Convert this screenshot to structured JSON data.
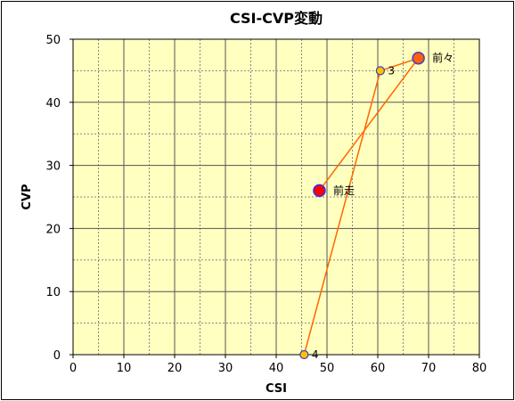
{
  "chart_data": {
    "type": "scatter",
    "title": "CSI-CVP変動",
    "xlabel": "CSI",
    "ylabel": "CVP",
    "xlim": [
      0,
      80
    ],
    "ylim": [
      0,
      50
    ],
    "x_ticks": [
      "0",
      "10",
      "20",
      "30",
      "40",
      "50",
      "60",
      "70",
      "80"
    ],
    "y_ticks": [
      "0",
      "10",
      "20",
      "30",
      "40",
      "50"
    ],
    "grid": true,
    "plot_background": "#ffffc0",
    "line_color": "#ff6600",
    "points": [
      {
        "label": "4",
        "x": 45.5,
        "y": 0,
        "size": "small",
        "fill": "#ffc000",
        "stroke": "#4040c0"
      },
      {
        "label": "3",
        "x": 60.5,
        "y": 45,
        "size": "small",
        "fill": "#ffc000",
        "stroke": "#4040c0"
      },
      {
        "label": "前々",
        "x": 68,
        "y": 47,
        "size": "large",
        "fill": "#ff6010",
        "stroke": "#4040c0"
      },
      {
        "label": "前走",
        "x": 48.5,
        "y": 26,
        "size": "large",
        "fill": "#ff0000",
        "stroke": "#3030ff"
      }
    ]
  }
}
